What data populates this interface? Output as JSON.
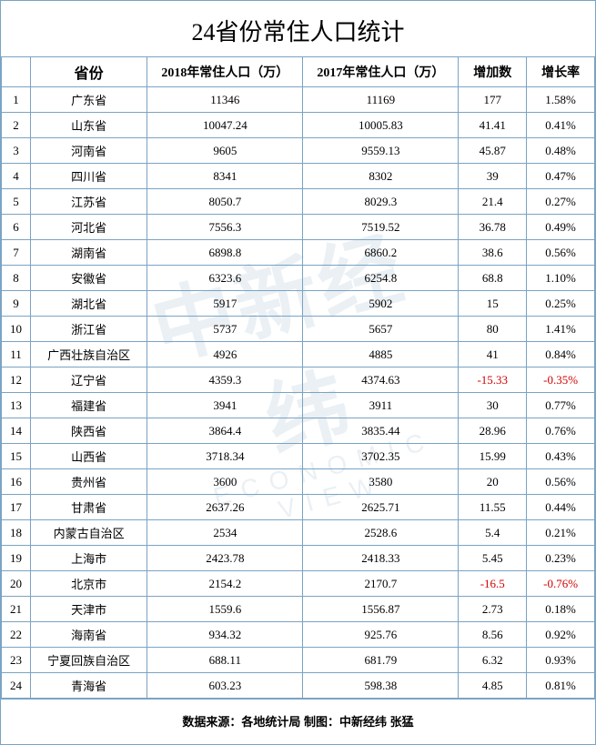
{
  "title": "24省份常住人口统计",
  "columns": [
    "",
    "省份",
    "2018年常住人口（万）",
    "2017年常住人口（万）",
    "增加数",
    "增长率"
  ],
  "rows": [
    {
      "idx": "1",
      "prov": "广东省",
      "p2018": "11346",
      "p2017": "11169",
      "inc": "177",
      "rate": "1.58%",
      "neg": false
    },
    {
      "idx": "2",
      "prov": "山东省",
      "p2018": "10047.24",
      "p2017": "10005.83",
      "inc": "41.41",
      "rate": "0.41%",
      "neg": false
    },
    {
      "idx": "3",
      "prov": "河南省",
      "p2018": "9605",
      "p2017": "9559.13",
      "inc": "45.87",
      "rate": "0.48%",
      "neg": false
    },
    {
      "idx": "4",
      "prov": "四川省",
      "p2018": "8341",
      "p2017": "8302",
      "inc": "39",
      "rate": "0.47%",
      "neg": false
    },
    {
      "idx": "5",
      "prov": "江苏省",
      "p2018": "8050.7",
      "p2017": "8029.3",
      "inc": "21.4",
      "rate": "0.27%",
      "neg": false
    },
    {
      "idx": "6",
      "prov": "河北省",
      "p2018": "7556.3",
      "p2017": "7519.52",
      "inc": "36.78",
      "rate": "0.49%",
      "neg": false
    },
    {
      "idx": "7",
      "prov": "湖南省",
      "p2018": "6898.8",
      "p2017": "6860.2",
      "inc": "38.6",
      "rate": "0.56%",
      "neg": false
    },
    {
      "idx": "8",
      "prov": "安徽省",
      "p2018": "6323.6",
      "p2017": "6254.8",
      "inc": "68.8",
      "rate": "1.10%",
      "neg": false
    },
    {
      "idx": "9",
      "prov": "湖北省",
      "p2018": "5917",
      "p2017": "5902",
      "inc": "15",
      "rate": "0.25%",
      "neg": false
    },
    {
      "idx": "10",
      "prov": "浙江省",
      "p2018": "5737",
      "p2017": "5657",
      "inc": "80",
      "rate": "1.41%",
      "neg": false
    },
    {
      "idx": "11",
      "prov": "广西壮族自治区",
      "p2018": "4926",
      "p2017": "4885",
      "inc": "41",
      "rate": "0.84%",
      "neg": false
    },
    {
      "idx": "12",
      "prov": "辽宁省",
      "p2018": "4359.3",
      "p2017": "4374.63",
      "inc": "-15.33",
      "rate": "-0.35%",
      "neg": true
    },
    {
      "idx": "13",
      "prov": "福建省",
      "p2018": "3941",
      "p2017": "3911",
      "inc": "30",
      "rate": "0.77%",
      "neg": false
    },
    {
      "idx": "14",
      "prov": "陕西省",
      "p2018": "3864.4",
      "p2017": "3835.44",
      "inc": "28.96",
      "rate": "0.76%",
      "neg": false
    },
    {
      "idx": "15",
      "prov": "山西省",
      "p2018": "3718.34",
      "p2017": "3702.35",
      "inc": "15.99",
      "rate": "0.43%",
      "neg": false
    },
    {
      "idx": "16",
      "prov": "贵州省",
      "p2018": "3600",
      "p2017": "3580",
      "inc": "20",
      "rate": "0.56%",
      "neg": false
    },
    {
      "idx": "17",
      "prov": "甘肃省",
      "p2018": "2637.26",
      "p2017": "2625.71",
      "inc": "11.55",
      "rate": "0.44%",
      "neg": false
    },
    {
      "idx": "18",
      "prov": "内蒙古自治区",
      "p2018": "2534",
      "p2017": "2528.6",
      "inc": "5.4",
      "rate": "0.21%",
      "neg": false
    },
    {
      "idx": "19",
      "prov": "上海市",
      "p2018": "2423.78",
      "p2017": "2418.33",
      "inc": "5.45",
      "rate": "0.23%",
      "neg": false
    },
    {
      "idx": "20",
      "prov": "北京市",
      "p2018": "2154.2",
      "p2017": "2170.7",
      "inc": "-16.5",
      "rate": "-0.76%",
      "neg": true
    },
    {
      "idx": "21",
      "prov": "天津市",
      "p2018": "1559.6",
      "p2017": "1556.87",
      "inc": "2.73",
      "rate": "0.18%",
      "neg": false
    },
    {
      "idx": "22",
      "prov": "海南省",
      "p2018": "934.32",
      "p2017": "925.76",
      "inc": "8.56",
      "rate": "0.92%",
      "neg": false
    },
    {
      "idx": "23",
      "prov": "宁夏回族自治区",
      "p2018": "688.11",
      "p2017": "681.79",
      "inc": "6.32",
      "rate": "0.93%",
      "neg": false
    },
    {
      "idx": "24",
      "prov": "青海省",
      "p2018": "603.23",
      "p2017": "598.38",
      "inc": "4.85",
      "rate": "0.81%",
      "neg": false
    }
  ],
  "footer": "数据来源：各地统计局  制图：中新经纬 张猛",
  "watermark": {
    "main": "中新经纬",
    "sub": "ECONOMIC VIEW"
  },
  "colors": {
    "border": "#7aa3c4",
    "negative": "#d00000",
    "text": "#000000",
    "watermark": "#7a9db8"
  }
}
